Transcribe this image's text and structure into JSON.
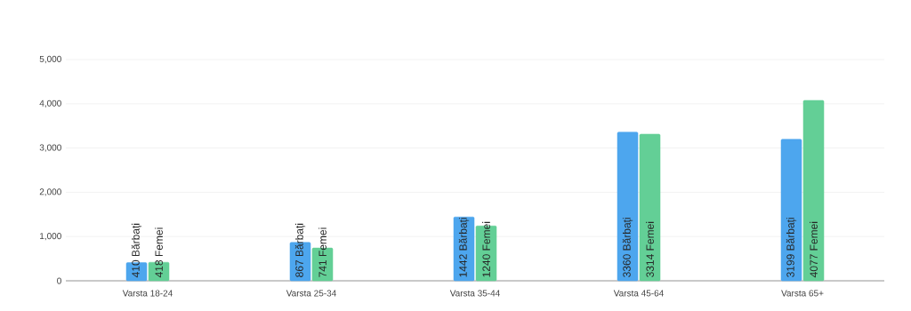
{
  "chart_data": {
    "type": "bar",
    "categories": [
      "Varsta 18-24",
      "Varsta 25-34",
      "Varsta 35-44",
      "Varsta 45-64",
      "Varsta 65+"
    ],
    "series": [
      {
        "name": "Bărbați",
        "color": "#4da6ee",
        "values": [
          410,
          867,
          1442,
          3360,
          3199
        ]
      },
      {
        "name": "Femei",
        "color": "#63cf96",
        "values": [
          418,
          741,
          1240,
          3314,
          4077
        ]
      }
    ],
    "data_labels": true,
    "ylim": [
      0,
      5000
    ],
    "yticks": [
      0,
      {
        "value": 1000,
        "label": "1,000"
      },
      {
        "value": 2000,
        "label": "2,000"
      },
      {
        "value": 3000,
        "label": "3,000"
      },
      {
        "value": 4000,
        "label": "4,000"
      },
      {
        "value": 5000,
        "label": "5,000"
      }
    ],
    "grid": "y"
  }
}
